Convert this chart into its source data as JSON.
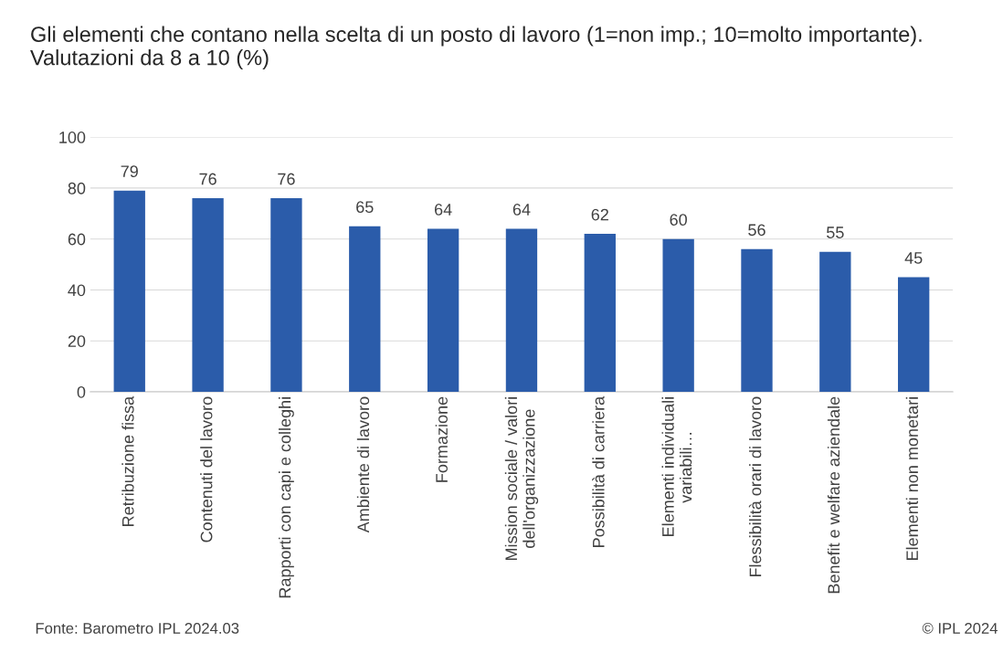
{
  "chart_data": {
    "type": "bar",
    "title": "Gli elementi che contano nella scelta di un posto di lavoro (1=non imp.; 10=molto importante). Valutazioni da 8 a 10 (%)",
    "categories": [
      "Retribuzione fissa",
      "Contenuti del lavoro",
      "Rapporti con capi e colleghi",
      "Ambiente di lavoro",
      "Formazione",
      "Mission sociale / valori\ndell'organizzazione",
      "Possibilità di carriera",
      "Elementi individuali\nvariabili…",
      "Flessibilità orari di lavoro",
      "Benefit e welfare aziendale",
      "Elementi non monetari"
    ],
    "values": [
      79,
      76,
      76,
      65,
      64,
      64,
      62,
      60,
      56,
      55,
      45
    ],
    "color": "#2b5caa",
    "ylim": [
      0,
      100
    ],
    "yticks": [
      0,
      20,
      40,
      60,
      80,
      100
    ],
    "grid": "y",
    "data_labels": true,
    "annotations": [
      "Fonte: Barometro IPL 2024.03",
      "© IPL 2024"
    ]
  }
}
